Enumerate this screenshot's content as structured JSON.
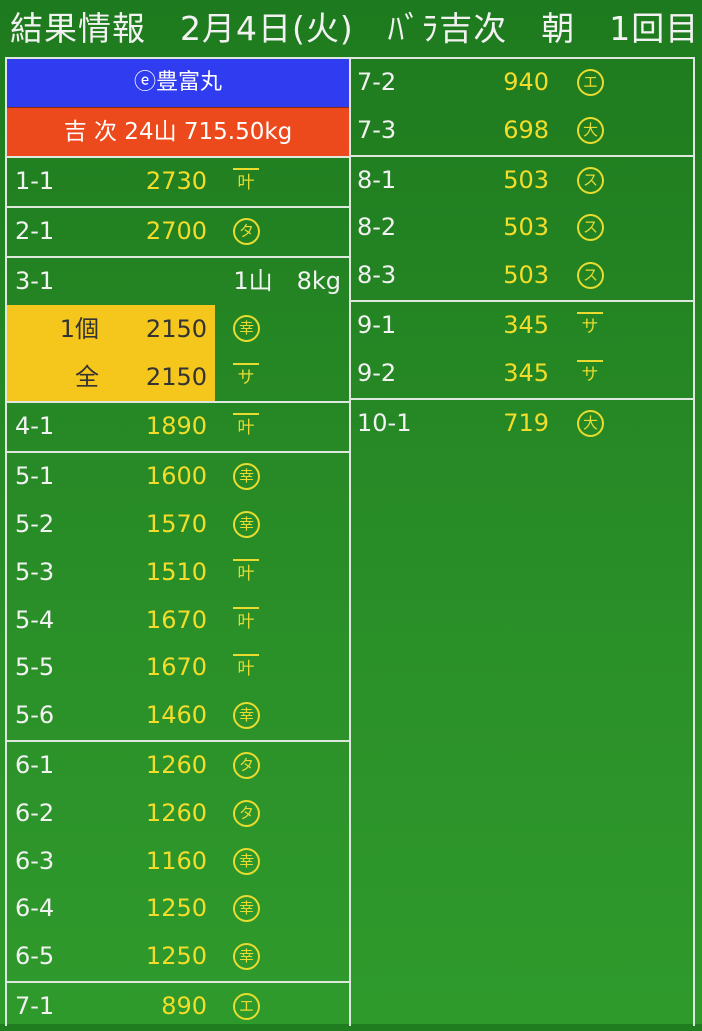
{
  "title": "結果情報　2月4日(火)　ﾊﾞﾗ吉次　朝　1回目",
  "vessel": "ⓔ豊富丸",
  "summary": "吉 次 24山 715.50kg",
  "left_groups": [
    [
      {
        "label": "1-1",
        "price": "2730",
        "mark": {
          "char": "叶",
          "style": "bar"
        }
      }
    ],
    [
      {
        "label": "2-1",
        "price": "2700",
        "mark": {
          "char": "タ",
          "style": "circle"
        }
      }
    ],
    [
      {
        "label": "3-1",
        "price": "",
        "extra": "1山　8kg",
        "sub": [
          {
            "label": "1個",
            "price": "2150",
            "mark": {
              "char": "幸",
              "style": "circle"
            }
          },
          {
            "label": "全",
            "price": "2150",
            "mark": {
              "char": "サ",
              "style": "bar"
            }
          }
        ]
      }
    ],
    [
      {
        "label": "4-1",
        "price": "1890",
        "mark": {
          "char": "叶",
          "style": "bar"
        }
      }
    ],
    [
      {
        "label": "5-1",
        "price": "1600",
        "mark": {
          "char": "幸",
          "style": "circle"
        }
      },
      {
        "label": "5-2",
        "price": "1570",
        "mark": {
          "char": "幸",
          "style": "circle"
        }
      },
      {
        "label": "5-3",
        "price": "1510",
        "mark": {
          "char": "叶",
          "style": "bar"
        }
      },
      {
        "label": "5-4",
        "price": "1670",
        "mark": {
          "char": "叶",
          "style": "bar"
        }
      },
      {
        "label": "5-5",
        "price": "1670",
        "mark": {
          "char": "叶",
          "style": "bar"
        }
      },
      {
        "label": "5-6",
        "price": "1460",
        "mark": {
          "char": "幸",
          "style": "circle"
        }
      }
    ],
    [
      {
        "label": "6-1",
        "price": "1260",
        "mark": {
          "char": "タ",
          "style": "circle"
        }
      },
      {
        "label": "6-2",
        "price": "1260",
        "mark": {
          "char": "タ",
          "style": "circle"
        }
      },
      {
        "label": "6-3",
        "price": "1160",
        "mark": {
          "char": "幸",
          "style": "circle"
        }
      },
      {
        "label": "6-4",
        "price": "1250",
        "mark": {
          "char": "幸",
          "style": "circle"
        }
      },
      {
        "label": "6-5",
        "price": "1250",
        "mark": {
          "char": "幸",
          "style": "circle"
        }
      }
    ],
    [
      {
        "label": "7-1",
        "price": "890",
        "mark": {
          "char": "エ",
          "style": "circle"
        }
      }
    ]
  ],
  "right_groups": [
    [
      {
        "label": "7-2",
        "price": "940",
        "mark": {
          "char": "エ",
          "style": "circle"
        }
      },
      {
        "label": "7-3",
        "price": "698",
        "mark": {
          "char": "大",
          "style": "circle"
        }
      }
    ],
    [
      {
        "label": "8-1",
        "price": "503",
        "mark": {
          "char": "ス",
          "style": "circle"
        }
      },
      {
        "label": "8-2",
        "price": "503",
        "mark": {
          "char": "ス",
          "style": "circle"
        }
      },
      {
        "label": "8-3",
        "price": "503",
        "mark": {
          "char": "ス",
          "style": "circle"
        }
      }
    ],
    [
      {
        "label": "9-1",
        "price": "345",
        "mark": {
          "char": "サ",
          "style": "bar"
        }
      },
      {
        "label": "9-2",
        "price": "345",
        "mark": {
          "char": "サ",
          "style": "bar"
        }
      }
    ],
    [
      {
        "label": "10-1",
        "price": "719",
        "mark": {
          "char": "大",
          "style": "circle"
        }
      }
    ]
  ]
}
